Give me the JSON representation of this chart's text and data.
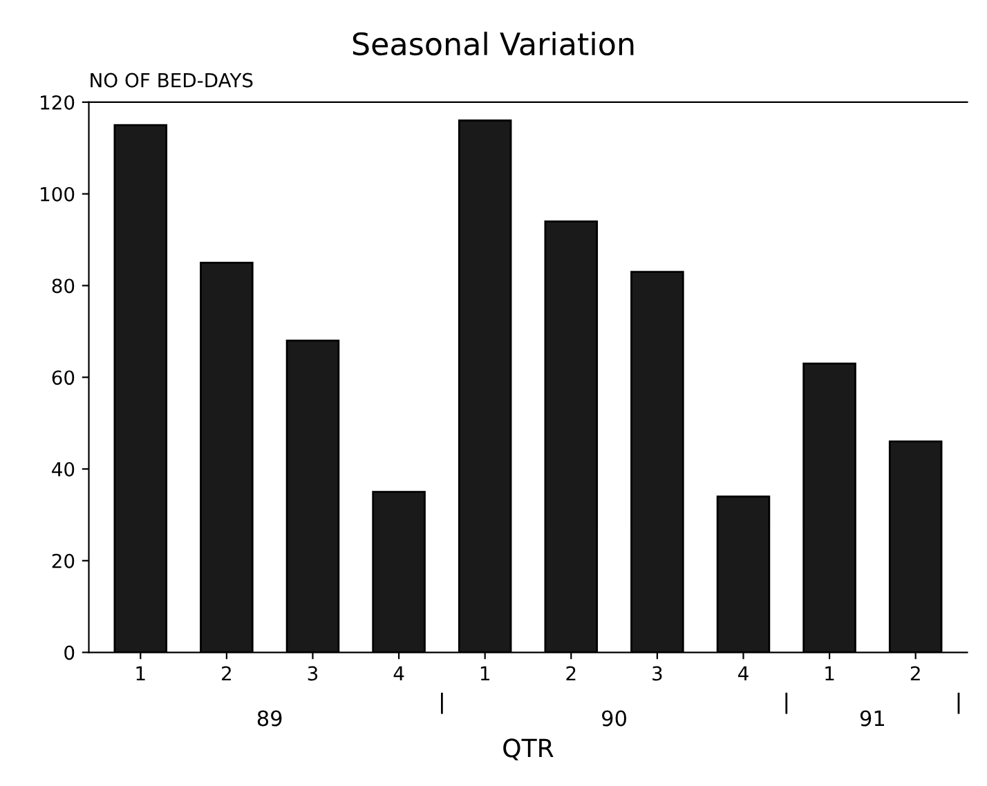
{
  "chart_data": {
    "type": "bar",
    "title": "Seasonal Variation",
    "ylabel": "NO OF BED-DAYS",
    "xlabel": "QTR",
    "categories": [
      "1",
      "2",
      "3",
      "4",
      "1",
      "2",
      "3",
      "4",
      "1",
      "2"
    ],
    "values": [
      115,
      85,
      68,
      35,
      116,
      94,
      83,
      34,
      63,
      46
    ],
    "color": "#1a1a1a",
    "ylim": [
      0,
      120
    ],
    "yticks": [
      0,
      20,
      40,
      60,
      80,
      100,
      120
    ],
    "grid": false,
    "annotations": [
      "89",
      "90",
      "91"
    ]
  }
}
